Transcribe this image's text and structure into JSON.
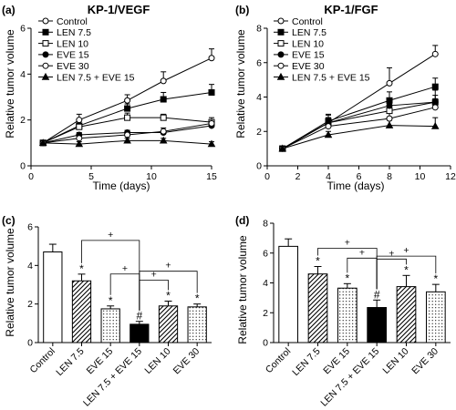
{
  "chart_data": [
    {
      "panel": "(a)",
      "type": "line",
      "title": "KP-1/VEGF",
      "xlabel": "Time (days)",
      "ylabel": "Relative tumor volume",
      "xlim": [
        0,
        15
      ],
      "ylim": [
        0,
        6
      ],
      "xticks": [
        "0",
        "5",
        "10",
        "15"
      ],
      "yticks": [
        "0",
        "2",
        "4",
        "6"
      ],
      "x": [
        1,
        4,
        8,
        11,
        15
      ],
      "legend_position": "top-left",
      "series": [
        {
          "name": "Control",
          "marker": "open-circle",
          "values": [
            1.0,
            2.0,
            2.85,
            3.7,
            4.7
          ],
          "errors": [
            0.05,
            0.25,
            0.25,
            0.4,
            0.4
          ]
        },
        {
          "name": "LEN 7.5",
          "marker": "filled-square",
          "values": [
            1.0,
            1.75,
            2.5,
            2.9,
            3.2
          ],
          "errors": [
            0.05,
            0.2,
            0.2,
            0.3,
            0.35
          ]
        },
        {
          "name": "LEN 10",
          "marker": "open-square",
          "values": [
            1.0,
            1.7,
            2.1,
            2.1,
            1.9
          ],
          "errors": [
            0.05,
            0.15,
            0.2,
            0.15,
            0.2
          ]
        },
        {
          "name": "EVE 15",
          "marker": "filled-circle",
          "values": [
            1.0,
            1.35,
            1.45,
            1.45,
            1.75
          ],
          "errors": [
            0.05,
            0.1,
            0.1,
            0.1,
            0.15
          ]
        },
        {
          "name": "EVE 30",
          "marker": "open-circle",
          "values": [
            1.0,
            1.2,
            1.35,
            1.5,
            1.85
          ],
          "errors": [
            0.05,
            0.1,
            0.1,
            0.15,
            0.15
          ]
        },
        {
          "name": "LEN 7.5 + EVE 15",
          "marker": "filled-triangle",
          "values": [
            1.0,
            0.95,
            1.1,
            1.1,
            0.95
          ],
          "errors": [
            0.05,
            0.1,
            0.1,
            0.1,
            0.1
          ]
        }
      ]
    },
    {
      "panel": "(b)",
      "type": "line",
      "title": "KP-1/FGF",
      "xlabel": "Time (days)",
      "ylabel": "Relative tumor volume",
      "xlim": [
        0,
        12
      ],
      "ylim": [
        0,
        8
      ],
      "xticks": [
        "0",
        "2",
        "4",
        "6",
        "8",
        "10",
        "12"
      ],
      "yticks": [
        "0",
        "2",
        "4",
        "6",
        "8"
      ],
      "x": [
        1,
        4,
        8,
        11
      ],
      "legend_position": "top-left",
      "series": [
        {
          "name": "Control",
          "marker": "open-circle",
          "values": [
            1.0,
            2.5,
            4.8,
            6.5
          ],
          "errors": [
            0.05,
            0.5,
            0.9,
            0.5
          ]
        },
        {
          "name": "LEN 7.5",
          "marker": "filled-square",
          "values": [
            1.0,
            2.6,
            3.8,
            4.6
          ],
          "errors": [
            0.05,
            0.35,
            0.5,
            0.5
          ]
        },
        {
          "name": "LEN 10",
          "marker": "open-square",
          "values": [
            1.0,
            2.5,
            3.2,
            3.7
          ],
          "errors": [
            0.05,
            0.3,
            0.4,
            0.7
          ]
        },
        {
          "name": "EVE 15",
          "marker": "filled-circle",
          "values": [
            1.0,
            2.5,
            3.5,
            3.7
          ],
          "errors": [
            0.05,
            0.3,
            0.35,
            0.4
          ]
        },
        {
          "name": "EVE 30",
          "marker": "open-circle",
          "values": [
            1.0,
            2.3,
            2.75,
            3.4
          ],
          "errors": [
            0.05,
            0.25,
            0.35,
            0.5
          ]
        },
        {
          "name": "LEN 7.5 + EVE 15",
          "marker": "filled-triangle",
          "values": [
            1.0,
            1.8,
            2.35,
            2.3
          ],
          "errors": [
            0.05,
            0.2,
            0.3,
            0.5
          ]
        }
      ]
    },
    {
      "panel": "(c)",
      "type": "bar",
      "ylabel": "Relative tumor volume",
      "ylim": [
        0,
        6
      ],
      "yticks": [
        "0",
        "2",
        "4",
        "6"
      ],
      "categories": [
        "Control",
        "LEN 7.5",
        "EVE 15",
        "LEN 7.5 + EVE 15",
        "LEN 10",
        "EVE 30"
      ],
      "values": [
        4.7,
        3.2,
        1.75,
        0.95,
        1.9,
        1.85
      ],
      "errors": [
        0.4,
        0.35,
        0.15,
        0.15,
        0.25,
        0.15
      ],
      "fills": [
        "white",
        "hatched",
        "dotted",
        "black",
        "hatched",
        "dotted"
      ],
      "marks": [
        "",
        "*",
        "*",
        "#",
        "*",
        "*"
      ],
      "plus_sign": "+"
    },
    {
      "panel": "(d)",
      "type": "bar",
      "ylabel": "Relative tumor volume",
      "ylim": [
        0,
        8
      ],
      "yticks": [
        "0",
        "2",
        "4",
        "6",
        "8"
      ],
      "categories": [
        "Control",
        "LEN 7.5",
        "EVE 15",
        "LEN 7.5 + EVE 15",
        "LEN 10",
        "EVE 30"
      ],
      "values": [
        6.45,
        4.6,
        3.65,
        2.35,
        3.75,
        3.4
      ],
      "errors": [
        0.5,
        0.5,
        0.3,
        0.5,
        0.75,
        0.5
      ],
      "fills": [
        "white",
        "hatched",
        "dotted",
        "black",
        "hatched",
        "dotted"
      ],
      "marks": [
        "",
        "*",
        "*",
        "#",
        "*",
        "*"
      ],
      "plus_sign": "+"
    }
  ]
}
